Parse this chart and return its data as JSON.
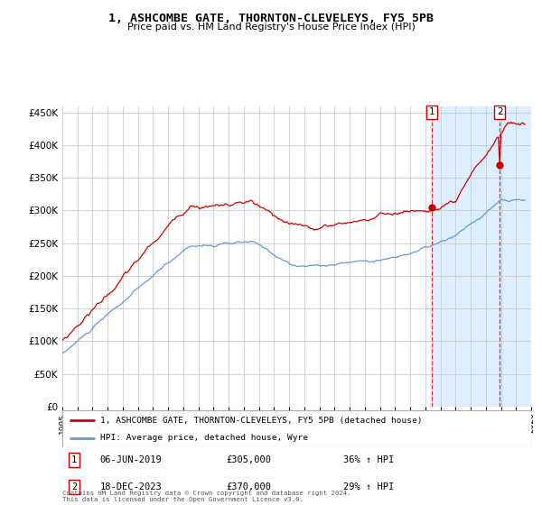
{
  "title": "1, ASHCOMBE GATE, THORNTON-CLEVELEYS, FY5 5PB",
  "subtitle": "Price paid vs. HM Land Registry's House Price Index (HPI)",
  "legend_line1": "1, ASHCOMBE GATE, THORNTON-CLEVELEYS, FY5 5PB (detached house)",
  "legend_line2": "HPI: Average price, detached house, Wyre",
  "annotation1_label": "1",
  "annotation1_date": "06-JUN-2019",
  "annotation1_price": "£305,000",
  "annotation1_hpi": "36% ↑ HPI",
  "annotation2_label": "2",
  "annotation2_date": "18-DEC-2023",
  "annotation2_price": "£370,000",
  "annotation2_hpi": "29% ↑ HPI",
  "footer": "Contains HM Land Registry data © Crown copyright and database right 2024.\nThis data is licensed under the Open Government Licence v3.0.",
  "red_color": "#cc0000",
  "blue_color": "#6699cc",
  "bg_color": "#ffffff",
  "grid_color": "#cccccc",
  "highlight_color": "#ddeeff",
  "ylim": [
    0,
    460000
  ],
  "yticks": [
    0,
    50000,
    100000,
    150000,
    200000,
    250000,
    300000,
    350000,
    400000,
    450000
  ],
  "xlim": [
    1995,
    2026
  ]
}
